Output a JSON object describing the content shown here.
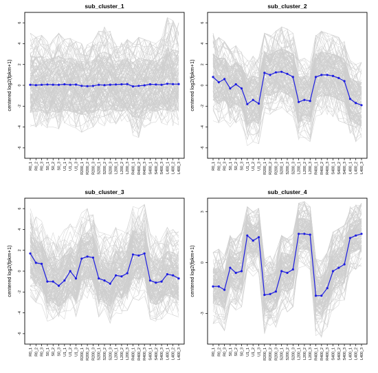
{
  "figure_background": "#ffffff",
  "colors": {
    "background_lines": "#cfcfcf",
    "centroid": "#1c1ce0",
    "frame": "#000000"
  },
  "chart_data": [
    {
      "type": "line",
      "title": "sub_cluster_1",
      "xlabel": "",
      "ylabel": "centered log2(fpkm+1)",
      "categories": [
        "R0_1",
        "R0_2",
        "R0_3",
        "S0_1",
        "S0_2",
        "S0_3",
        "U1_1",
        "U1_2",
        "U1_3",
        "R200_1",
        "R200_2",
        "R200_3",
        "S200_1",
        "S200_2",
        "S200_3",
        "L200_1",
        "L200_2",
        "L200_3",
        "R400_1",
        "R400_2",
        "R400_3",
        "S400_1",
        "S400_2",
        "S400_3",
        "L400_1",
        "L400_2",
        "L400_3"
      ],
      "ylim": [
        -7,
        7
      ],
      "yticks": [
        -6,
        -4,
        -2,
        0,
        2,
        4,
        6
      ],
      "ytick_labels": [
        "-6",
        "-4",
        "-2",
        "0",
        "2",
        "4",
        "6"
      ],
      "series": [
        {
          "role": "centroid",
          "values": [
            0.05,
            0.02,
            0.05,
            0.08,
            0.06,
            0.05,
            0.1,
            0.05,
            0.07,
            -0.05,
            -0.08,
            -0.05,
            0.05,
            0.02,
            0.06,
            0.08,
            0.1,
            0.12,
            -0.1,
            -0.05,
            0.0,
            0.1,
            0.08,
            0.05,
            0.15,
            0.12,
            0.12
          ]
        }
      ],
      "background_band": {
        "outer_upper": [
          5.0,
          4.6,
          4.8,
          4.2,
          4.4,
          5.0,
          4.4,
          4.5,
          4.2,
          4.0,
          3.9,
          4.2,
          5.2,
          5.6,
          5.2,
          3.9,
          4.1,
          4.4,
          4.0,
          4.6,
          4.4,
          4.2,
          4.0,
          4.5,
          6.5,
          6.2,
          6.0
        ],
        "outer_lower": [
          -4.2,
          -4.0,
          -3.9,
          -4.3,
          -4.0,
          -4.2,
          -3.8,
          -3.9,
          -4.1,
          -4.5,
          -4.2,
          -4.0,
          -3.6,
          -3.9,
          -3.6,
          -3.7,
          -3.9,
          -3.5,
          -4.8,
          -5.0,
          -4.4,
          -3.8,
          -3.9,
          -3.6,
          -3.8,
          -3.9,
          -3.8
        ],
        "core_upper": [
          3.0,
          2.7,
          2.8,
          2.5,
          2.6,
          2.8,
          2.5,
          2.6,
          2.5,
          2.3,
          2.2,
          2.4,
          3.0,
          3.2,
          3.0,
          2.3,
          2.4,
          2.6,
          2.2,
          2.6,
          2.5,
          2.4,
          2.3,
          2.6,
          3.6,
          3.4,
          3.3
        ],
        "core_lower": [
          -2.6,
          -2.5,
          -2.4,
          -2.7,
          -2.5,
          -2.6,
          -2.4,
          -2.5,
          -2.6,
          -2.8,
          -2.7,
          -2.6,
          -2.3,
          -2.5,
          -2.3,
          -2.4,
          -2.5,
          -2.3,
          -3.0,
          -3.1,
          -2.8,
          -2.4,
          -2.5,
          -2.3,
          -2.4,
          -2.5,
          -2.4
        ]
      }
    },
    {
      "type": "line",
      "title": "sub_cluster_2",
      "xlabel": "",
      "ylabel": "centered log2(fpkm+1)",
      "categories": [
        "R0_1",
        "R0_2",
        "R0_3",
        "S0_1",
        "S0_2",
        "S0_3",
        "U1_1",
        "U1_2",
        "U1_3",
        "R200_1",
        "R200_2",
        "R200_3",
        "S200_1",
        "S200_2",
        "S200_3",
        "L200_1",
        "L200_2",
        "L200_3",
        "R400_1",
        "R400_2",
        "R400_3",
        "S400_1",
        "S400_2",
        "S400_3",
        "L400_1",
        "L400_2",
        "L400_3"
      ],
      "ylim": [
        -7,
        7
      ],
      "yticks": [
        -6,
        -4,
        -2,
        0,
        2,
        4,
        6
      ],
      "ytick_labels": [
        "-6",
        "-4",
        "-2",
        "0",
        "2",
        "4",
        "6"
      ],
      "series": [
        {
          "role": "centroid",
          "values": [
            0.8,
            0.3,
            0.6,
            -0.3,
            0.1,
            -0.3,
            -1.8,
            -1.4,
            -1.75,
            1.2,
            1.0,
            1.25,
            1.3,
            1.1,
            0.8,
            -1.6,
            -1.4,
            -1.5,
            0.8,
            1.0,
            1.0,
            0.9,
            0.7,
            0.4,
            -1.3,
            -1.7,
            -1.9
          ]
        }
      ],
      "background_band": {
        "outer_upper": [
          5.0,
          4.6,
          4.2,
          3.4,
          3.8,
          3.2,
          2.4,
          2.8,
          2.6,
          5.0,
          4.8,
          5.2,
          5.6,
          5.4,
          5.0,
          2.4,
          2.6,
          2.2,
          4.8,
          5.2,
          5.0,
          4.8,
          4.6,
          4.2,
          2.4,
          2.0,
          2.2
        ],
        "outer_lower": [
          -3.4,
          -3.6,
          -3.3,
          -4.0,
          -3.6,
          -3.8,
          -5.8,
          -5.4,
          -5.6,
          -2.6,
          -2.8,
          -2.4,
          -2.2,
          -2.6,
          -3.0,
          -5.2,
          -5.0,
          -5.4,
          -3.2,
          -2.8,
          -2.8,
          -3.0,
          -3.4,
          -3.6,
          -5.0,
          -5.4,
          -5.6
        ],
        "core_upper": [
          3.0,
          2.6,
          2.6,
          1.8,
          2.2,
          1.8,
          0.6,
          0.9,
          0.7,
          3.2,
          3.0,
          3.3,
          3.5,
          3.3,
          3.0,
          0.8,
          0.9,
          0.7,
          3.0,
          3.2,
          3.1,
          3.0,
          2.8,
          2.5,
          0.7,
          0.4,
          0.3
        ],
        "core_lower": [
          -1.4,
          -1.8,
          -1.4,
          -2.2,
          -1.8,
          -2.2,
          -3.8,
          -3.4,
          -3.7,
          -0.8,
          -1.0,
          -0.7,
          -0.6,
          -0.9,
          -1.2,
          -3.5,
          -3.3,
          -3.5,
          -1.2,
          -1.0,
          -1.0,
          -1.1,
          -1.4,
          -1.6,
          -3.3,
          -3.7,
          -3.9
        ]
      }
    },
    {
      "type": "line",
      "title": "sub_cluster_3",
      "xlabel": "",
      "ylabel": "centered log2(fpkm+1)",
      "categories": [
        "R0_1",
        "R0_2",
        "R0_3",
        "S0_1",
        "S0_2",
        "S0_3",
        "U1_1",
        "U1_2",
        "U1_3",
        "R200_1",
        "R200_2",
        "R200_3",
        "S200_1",
        "S200_2",
        "S200_3",
        "L200_1",
        "L200_2",
        "L200_3",
        "R400_1",
        "R400_2",
        "R400_3",
        "S400_1",
        "S400_2",
        "S400_3",
        "L400_1",
        "L400_2",
        "L400_3"
      ],
      "ylim": [
        -7,
        7
      ],
      "yticks": [
        -6,
        -4,
        -2,
        0,
        2,
        4,
        6
      ],
      "ytick_labels": [
        "-6",
        "-4",
        "-2",
        "0",
        "2",
        "4",
        "6"
      ],
      "series": [
        {
          "role": "centroid",
          "values": [
            1.7,
            0.8,
            0.7,
            -1.0,
            -1.0,
            -1.4,
            -0.9,
            0.0,
            -0.7,
            1.2,
            1.4,
            1.3,
            -0.7,
            -0.9,
            -1.2,
            -0.4,
            -0.5,
            -0.2,
            1.6,
            1.5,
            1.7,
            -0.9,
            -1.1,
            -1.0,
            -0.3,
            -0.4,
            -0.7
          ]
        }
      ],
      "background_band": {
        "outer_upper": [
          6.0,
          5.2,
          4.8,
          3.6,
          3.8,
          3.4,
          4.0,
          4.6,
          4.2,
          5.6,
          6.0,
          5.8,
          3.8,
          3.6,
          3.4,
          4.2,
          4.0,
          4.4,
          6.2,
          6.0,
          6.4,
          3.6,
          3.4,
          3.6,
          4.2,
          4.0,
          3.8
        ],
        "outer_lower": [
          -2.8,
          -3.0,
          -3.2,
          -4.8,
          -4.6,
          -5.0,
          -4.6,
          -3.8,
          -4.4,
          -2.8,
          -2.6,
          -2.8,
          -4.4,
          -4.6,
          -5.0,
          -4.0,
          -4.2,
          -3.8,
          -2.6,
          -2.8,
          -2.4,
          -4.6,
          -4.8,
          -4.6,
          -4.0,
          -4.2,
          -4.4
        ],
        "core_upper": [
          3.8,
          3.0,
          2.8,
          1.3,
          1.4,
          1.0,
          1.6,
          2.3,
          1.8,
          3.4,
          3.7,
          3.5,
          1.5,
          1.3,
          1.0,
          1.9,
          1.8,
          2.1,
          3.9,
          3.7,
          4.0,
          1.3,
          1.1,
          1.3,
          1.9,
          1.8,
          1.5
        ],
        "core_lower": [
          -0.5,
          -1.4,
          -1.4,
          -3.1,
          -3.0,
          -3.4,
          -3.0,
          -2.0,
          -2.9,
          -0.9,
          -0.7,
          -0.9,
          -2.9,
          -3.0,
          -3.4,
          -2.4,
          -2.6,
          -2.2,
          -0.6,
          -0.8,
          -0.5,
          -3.0,
          -3.2,
          -3.0,
          -2.3,
          -2.5,
          -2.8
        ]
      }
    },
    {
      "type": "line",
      "title": "sub_cluster_4",
      "xlabel": "",
      "ylabel": "centered log2(fpkm+1)",
      "categories": [
        "R0_1",
        "R0_2",
        "R0_3",
        "S0_1",
        "S0_2",
        "S0_3",
        "U1_1",
        "U1_2",
        "U1_3",
        "R200_1",
        "R200_2",
        "R200_3",
        "S200_1",
        "S200_2",
        "S200_3",
        "L200_1",
        "L200_2",
        "L200_3",
        "R400_1",
        "R400_2",
        "R400_3",
        "S400_1",
        "S400_2",
        "S400_3",
        "L400_1",
        "L400_2",
        "L400_3"
      ],
      "ylim": [
        -4.8,
        3.8
      ],
      "yticks": [
        -3,
        0,
        3
      ],
      "ytick_labels": [
        "-3",
        "0",
        "3"
      ],
      "series": [
        {
          "role": "centroid",
          "values": [
            -1.4,
            -1.4,
            -1.6,
            -0.3,
            -0.6,
            -0.5,
            1.6,
            1.3,
            1.5,
            -1.9,
            -1.85,
            -1.7,
            -0.5,
            -0.6,
            -0.4,
            1.7,
            1.7,
            1.65,
            -1.95,
            -1.95,
            -1.5,
            -0.5,
            -0.3,
            -0.1,
            1.45,
            1.6,
            1.7
          ]
        }
      ],
      "background_band": {
        "outer_upper": [
          0.6,
          0.8,
          0.4,
          1.6,
          1.4,
          1.8,
          3.3,
          3.0,
          3.2,
          0.2,
          0.4,
          0.6,
          1.6,
          1.4,
          1.7,
          3.5,
          3.6,
          3.3,
          0.2,
          0.1,
          0.6,
          1.8,
          2.0,
          2.2,
          3.3,
          3.4,
          3.5
        ],
        "outer_lower": [
          -3.6,
          -3.8,
          -4.0,
          -2.4,
          -2.8,
          -2.6,
          -0.4,
          -0.8,
          -0.6,
          -4.2,
          -4.0,
          -3.8,
          -2.8,
          -2.9,
          -2.6,
          -0.3,
          -0.2,
          -0.4,
          -4.3,
          -4.4,
          -3.8,
          -2.8,
          -2.5,
          -2.2,
          -0.6,
          -0.4,
          -0.2
        ],
        "core_upper": [
          -0.4,
          -0.3,
          -0.6,
          0.8,
          0.5,
          0.7,
          2.5,
          2.2,
          2.4,
          -0.8,
          -0.7,
          -0.6,
          0.6,
          0.5,
          0.7,
          2.6,
          2.6,
          2.5,
          -0.8,
          -0.9,
          -0.4,
          0.7,
          0.9,
          1.1,
          2.3,
          2.5,
          2.6
        ],
        "core_lower": [
          -2.4,
          -2.5,
          -2.7,
          -1.4,
          -1.7,
          -1.6,
          0.6,
          0.3,
          0.5,
          -3.0,
          -2.9,
          -2.7,
          -1.6,
          -1.7,
          -1.5,
          0.8,
          0.8,
          0.7,
          -3.1,
          -3.1,
          -2.6,
          -1.6,
          -1.4,
          -1.2,
          0.5,
          0.7,
          0.8
        ]
      }
    }
  ]
}
